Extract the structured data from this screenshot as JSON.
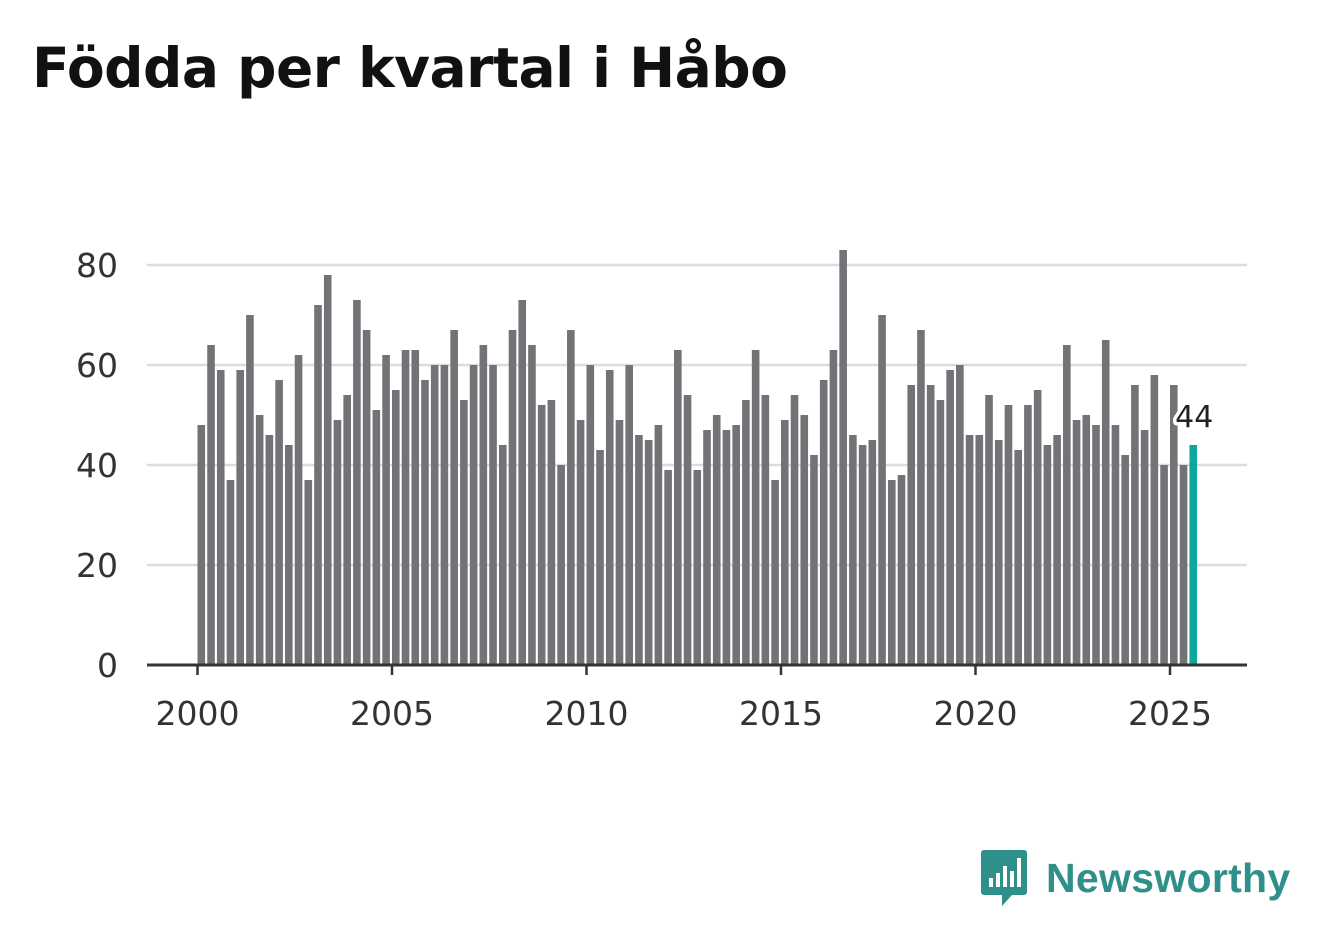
{
  "title": "Födda per kvartal i Håbo",
  "brand": {
    "name": "Newsworthy",
    "icon": "newsworthy-logo-icon",
    "color": "#2f8f8a"
  },
  "chart_data": {
    "type": "bar",
    "title": "Födda per kvartal i Håbo",
    "xlabel": "",
    "ylabel": "",
    "x_ticks": [
      "2000",
      "2005",
      "2010",
      "2015",
      "2020",
      "2025"
    ],
    "y_ticks": [
      "0",
      "20",
      "40",
      "60",
      "80"
    ],
    "ylim": [
      0,
      85
    ],
    "start_year": 2000,
    "periods_per_year": 4,
    "bar_color": "#737277",
    "highlight_color": "#0fa69c",
    "highlight_label": "44",
    "values": [
      48,
      64,
      59,
      37,
      59,
      70,
      50,
      46,
      57,
      44,
      62,
      37,
      72,
      78,
      49,
      54,
      73,
      67,
      51,
      62,
      55,
      63,
      63,
      57,
      60,
      60,
      67,
      53,
      60,
      64,
      60,
      44,
      67,
      73,
      64,
      52,
      53,
      40,
      67,
      49,
      60,
      43,
      59,
      49,
      60,
      46,
      45,
      48,
      39,
      63,
      54,
      39,
      47,
      50,
      47,
      48,
      53,
      63,
      54,
      37,
      49,
      54,
      50,
      42,
      57,
      63,
      83,
      46,
      44,
      45,
      70,
      37,
      38,
      56,
      67,
      56,
      53,
      59,
      60,
      46,
      46,
      54,
      45,
      52,
      43,
      52,
      55,
      44,
      46,
      64,
      49,
      50,
      48,
      65,
      48,
      42,
      56,
      47,
      58,
      40,
      56,
      40,
      44
    ]
  }
}
